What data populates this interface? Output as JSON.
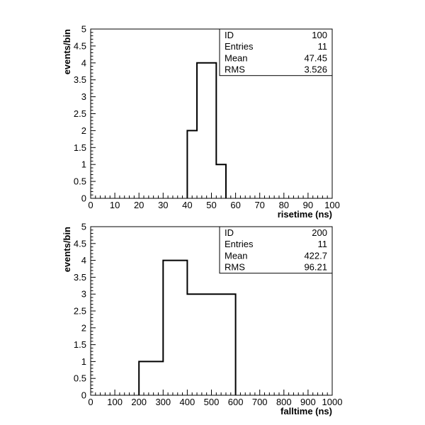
{
  "chart_data": [
    {
      "type": "bar",
      "subtype": "histogram",
      "xlabel": "risetime (ns)",
      "ylabel": "events/bin",
      "xlim": [
        0,
        100
      ],
      "ylim": [
        0,
        5
      ],
      "x_ticks": [
        0,
        10,
        20,
        30,
        40,
        50,
        60,
        70,
        80,
        90,
        100
      ],
      "y_ticks": [
        0,
        0.5,
        1,
        1.5,
        2,
        2.5,
        3,
        3.5,
        4,
        4.5,
        5
      ],
      "bins": [
        {
          "x0": 40,
          "x1": 44,
          "value": 2
        },
        {
          "x0": 44,
          "x1": 52,
          "value": 4
        },
        {
          "x0": 52,
          "x1": 56,
          "value": 1
        }
      ],
      "stats": [
        {
          "label": "ID",
          "value": "100"
        },
        {
          "label": "Entries",
          "value": "11"
        },
        {
          "label": "Mean",
          "value": "47.45"
        },
        {
          "label": "RMS",
          "value": "3.526"
        }
      ]
    },
    {
      "type": "bar",
      "subtype": "histogram",
      "xlabel": "falltime (ns)",
      "ylabel": "events/bin",
      "xlim": [
        0,
        1000
      ],
      "ylim": [
        0,
        5
      ],
      "x_ticks": [
        0,
        100,
        200,
        300,
        400,
        500,
        600,
        700,
        800,
        900,
        1000
      ],
      "y_ticks": [
        0,
        0.5,
        1,
        1.5,
        2,
        2.5,
        3,
        3.5,
        4,
        4.5,
        5
      ],
      "bins": [
        {
          "x0": 200,
          "x1": 300,
          "value": 1
        },
        {
          "x0": 300,
          "x1": 400,
          "value": 4
        },
        {
          "x0": 400,
          "x1": 600,
          "value": 3
        }
      ],
      "stats": [
        {
          "label": "ID",
          "value": "200"
        },
        {
          "label": "Entries",
          "value": "11"
        },
        {
          "label": "Mean",
          "value": "422.7"
        },
        {
          "label": "RMS",
          "value": "96.21"
        }
      ]
    }
  ]
}
